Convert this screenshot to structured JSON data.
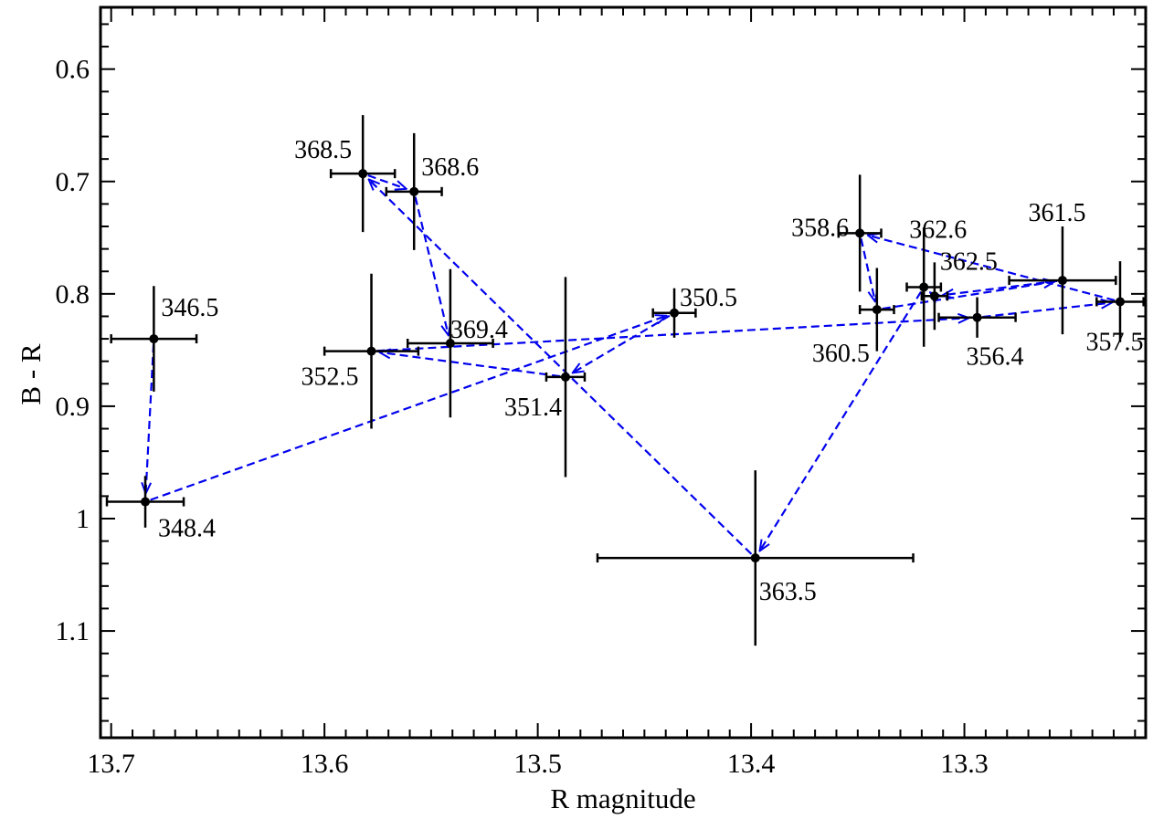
{
  "chart_data": {
    "type": "scatter",
    "title": "",
    "xlabel": "R magnitude",
    "ylabel": "B - R",
    "xlim": [
      13.705,
      13.215
    ],
    "ylim": [
      1.195,
      0.545
    ],
    "x_inverted": true,
    "y_inverted": true,
    "xticks": [
      "13.7",
      "13.6",
      "13.5",
      "13.4",
      "13.3"
    ],
    "yticks": [
      "0.6",
      "0.7",
      "0.8",
      "0.9",
      "1",
      "1.1"
    ],
    "points": [
      {
        "label": "346.5",
        "x": 13.68,
        "y": 0.84,
        "xerr": 0.02,
        "yerr": 0.047
      },
      {
        "label": "348.4",
        "x": 13.684,
        "y": 0.985,
        "xerr": 0.018,
        "yerr": 0.023
      },
      {
        "label": "350.5",
        "x": 13.436,
        "y": 0.817,
        "xerr": 0.01,
        "yerr": 0.022
      },
      {
        "label": "351.4",
        "x": 13.487,
        "y": 0.874,
        "xerr": 0.009,
        "yerr": 0.089
      },
      {
        "label": "352.5",
        "x": 13.578,
        "y": 0.851,
        "xerr": 0.022,
        "yerr": 0.069
      },
      {
        "label": "356.4",
        "x": 13.294,
        "y": 0.821,
        "xerr": 0.018,
        "yerr": 0.018
      },
      {
        "label": "357.5",
        "x": 13.227,
        "y": 0.807,
        "xerr": 0.011,
        "yerr": 0.036
      },
      {
        "label": "358.6",
        "x": 13.349,
        "y": 0.746,
        "xerr": 0.01,
        "yerr": 0.052
      },
      {
        "label": "360.5",
        "x": 13.341,
        "y": 0.814,
        "xerr": 0.008,
        "yerr": 0.037
      },
      {
        "label": "361.5",
        "x": 13.254,
        "y": 0.788,
        "xerr": 0.025,
        "yerr": 0.048
      },
      {
        "label": "362.5",
        "x": 13.314,
        "y": 0.802,
        "xerr": 0.006,
        "yerr": 0.03
      },
      {
        "label": "362.6",
        "x": 13.319,
        "y": 0.794,
        "xerr": 0.008,
        "yerr": 0.053
      },
      {
        "label": "363.5",
        "x": 13.398,
        "y": 1.035,
        "xerr": 0.074,
        "yerr": 0.078
      },
      {
        "label": "368.5",
        "x": 13.582,
        "y": 0.693,
        "xerr": 0.015,
        "yerr": 0.052
      },
      {
        "label": "368.6",
        "x": 13.558,
        "y": 0.709,
        "xerr": 0.013,
        "yerr": 0.052
      },
      {
        "label": "369.4",
        "x": 13.541,
        "y": 0.844,
        "xerr": 0.02,
        "yerr": 0.066
      }
    ],
    "path_order": [
      "346.5",
      "348.4",
      "350.5",
      "351.4",
      "352.5",
      "356.4",
      "357.5",
      "358.6",
      "360.5",
      "361.5",
      "362.5",
      "362.6",
      "363.5",
      "368.5",
      "368.6",
      "369.4"
    ],
    "path_style": "dashed arrows",
    "path_color": "#0000ee",
    "marker_color": "#000000",
    "grid": false,
    "legend": "none"
  }
}
